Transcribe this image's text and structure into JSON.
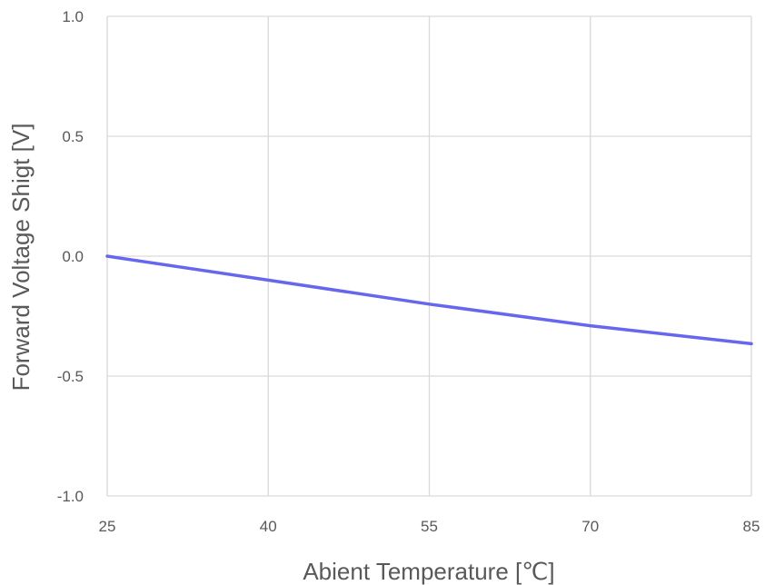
{
  "chart_data": {
    "type": "line",
    "title": "",
    "xlabel": "Abient Temperature [℃]",
    "ylabel": "Forward Voltage Shigt [V]",
    "xlim": [
      25,
      85
    ],
    "ylim": [
      -1.0,
      1.0
    ],
    "x_ticks": [
      25,
      40,
      55,
      70,
      85
    ],
    "y_ticks": [
      1.0,
      0.5,
      0.0,
      -0.5,
      -1.0
    ],
    "x_tick_labels": [
      "25",
      "40",
      "55",
      "70",
      "85"
    ],
    "y_tick_labels": [
      "1.0",
      "0.5",
      "0.0",
      "-0.5",
      "-1.0"
    ],
    "grid": true,
    "legend": "none",
    "series": [
      {
        "color": "#6666ee",
        "x": [
          25,
          40,
          55,
          70,
          85
        ],
        "y": [
          0.0,
          -0.1,
          -0.2,
          -0.29,
          -0.365
        ]
      }
    ]
  }
}
